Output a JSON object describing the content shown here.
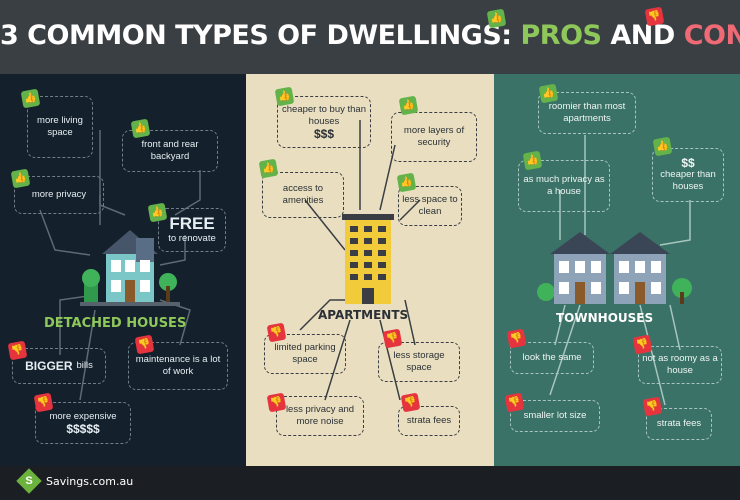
{
  "header": {
    "title_prefix": "3 COMMON TYPES OF DWELLINGS: ",
    "title_pros": "PROS",
    "title_and": " AND ",
    "title_cons": "CONS"
  },
  "detached": {
    "label": "DETACHED HOUSES",
    "pros": [
      "more living space",
      "front and rear backyard",
      "more privacy",
      "FREE",
      "to renovate"
    ],
    "cons": [
      "BIGGER",
      "bills",
      "maintenance is a lot of work",
      "more expensive",
      "$$$$$"
    ]
  },
  "apartments": {
    "label": "APARTMENTS",
    "pros": [
      "cheaper to buy than houses",
      "$$$",
      "more layers of security",
      "access to amenities",
      "less space to clean"
    ],
    "cons": [
      "limited parking space",
      "less storage space",
      "less privacy and more noise",
      "strata fees"
    ]
  },
  "townhouses": {
    "label": "TOWNHOUSES",
    "pros": [
      "roomier than most apartments",
      "as much privacy as a house",
      "$$",
      "cheaper than houses"
    ],
    "cons": [
      "look the same",
      "not as roomy as a house",
      "smaller lot size",
      "strata fees"
    ]
  },
  "footer": {
    "logo_letter": "S",
    "logo_text": "Savings.com.au"
  },
  "icons": {
    "like": "thumbs-up-icon",
    "dislike": "thumbs-down-icon"
  },
  "colors": {
    "pros": "#8fc85a",
    "cons": "#f06a76",
    "panel1": "#14202c",
    "panel2": "#e9dfc0",
    "panel3": "#3b7267"
  }
}
